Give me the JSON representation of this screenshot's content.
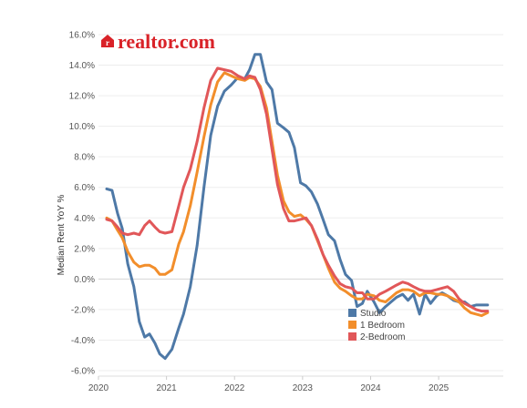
{
  "brand": {
    "logo_text": "realtor.com",
    "logo_mark": "r",
    "logo_color": "#d92228"
  },
  "chart_data": {
    "type": "line",
    "title": "",
    "xlabel": "",
    "ylabel": "Median Rent YoY %",
    "x_tick_labels": [
      "2020",
      "2021",
      "2022",
      "2023",
      "2024",
      "2025"
    ],
    "y_tick_labels": [
      "16.0%",
      "14.0%",
      "12.0%",
      "10.0%",
      "8.0%",
      "6.0%",
      "4.0%",
      "2.0%",
      "0.0%",
      "-2.0%",
      "-4.0%",
      "-6.0%"
    ],
    "xlim": [
      2020.0,
      2025.95
    ],
    "ylim": [
      -6.0,
      16.0
    ],
    "grid": "horizontal",
    "legend_position": "bottom-right",
    "series": [
      {
        "name": "Studio",
        "color": "#4e79a7",
        "points": [
          [
            2020.12,
            5.9
          ],
          [
            2020.2,
            5.8
          ],
          [
            2020.28,
            4.3
          ],
          [
            2020.35,
            3.3
          ],
          [
            2020.43,
            1.0
          ],
          [
            2020.52,
            -0.5
          ],
          [
            2020.6,
            -2.8
          ],
          [
            2020.68,
            -3.8
          ],
          [
            2020.75,
            -3.6
          ],
          [
            2020.83,
            -4.2
          ],
          [
            2020.9,
            -4.9
          ],
          [
            2020.98,
            -5.2
          ],
          [
            2021.08,
            -4.6
          ],
          [
            2021.18,
            -3.2
          ],
          [
            2021.25,
            -2.3
          ],
          [
            2021.35,
            -0.5
          ],
          [
            2021.45,
            2.2
          ],
          [
            2021.55,
            6.0
          ],
          [
            2021.65,
            9.4
          ],
          [
            2021.75,
            11.3
          ],
          [
            2021.85,
            12.3
          ],
          [
            2021.95,
            12.7
          ],
          [
            2022.05,
            13.2
          ],
          [
            2022.15,
            13.1
          ],
          [
            2022.22,
            13.7
          ],
          [
            2022.3,
            14.7
          ],
          [
            2022.38,
            14.7
          ],
          [
            2022.47,
            12.9
          ],
          [
            2022.55,
            12.4
          ],
          [
            2022.63,
            10.2
          ],
          [
            2022.72,
            9.9
          ],
          [
            2022.8,
            9.6
          ],
          [
            2022.88,
            8.6
          ],
          [
            2022.97,
            6.3
          ],
          [
            2023.05,
            6.1
          ],
          [
            2023.13,
            5.7
          ],
          [
            2023.22,
            4.9
          ],
          [
            2023.3,
            3.9
          ],
          [
            2023.38,
            2.9
          ],
          [
            2023.47,
            2.5
          ],
          [
            2023.55,
            1.3
          ],
          [
            2023.63,
            0.3
          ],
          [
            2023.72,
            -0.1
          ],
          [
            2023.8,
            -1.8
          ],
          [
            2023.88,
            -1.6
          ],
          [
            2023.95,
            -0.8
          ],
          [
            2024.05,
            -1.5
          ],
          [
            2024.13,
            -2.2
          ],
          [
            2024.22,
            -1.8
          ],
          [
            2024.3,
            -1.5
          ],
          [
            2024.38,
            -1.2
          ],
          [
            2024.47,
            -1.0
          ],
          [
            2024.55,
            -1.4
          ],
          [
            2024.63,
            -1.0
          ],
          [
            2024.72,
            -2.3
          ],
          [
            2024.8,
            -1.0
          ],
          [
            2024.88,
            -1.6
          ],
          [
            2024.97,
            -1.1
          ],
          [
            2025.05,
            -0.9
          ],
          [
            2025.13,
            -1.1
          ],
          [
            2025.22,
            -1.4
          ],
          [
            2025.3,
            -1.5
          ],
          [
            2025.38,
            -1.5
          ],
          [
            2025.47,
            -1.8
          ],
          [
            2025.55,
            -1.7
          ],
          [
            2025.63,
            -1.7
          ],
          [
            2025.72,
            -1.7
          ]
        ]
      },
      {
        "name": "1 Bedroom",
        "color": "#f28e2b",
        "points": [
          [
            2020.12,
            4.0
          ],
          [
            2020.2,
            3.8
          ],
          [
            2020.28,
            3.2
          ],
          [
            2020.35,
            2.7
          ],
          [
            2020.43,
            1.8
          ],
          [
            2020.52,
            1.1
          ],
          [
            2020.6,
            0.8
          ],
          [
            2020.68,
            0.9
          ],
          [
            2020.75,
            0.9
          ],
          [
            2020.83,
            0.7
          ],
          [
            2020.9,
            0.3
          ],
          [
            2020.98,
            0.3
          ],
          [
            2021.08,
            0.6
          ],
          [
            2021.18,
            2.3
          ],
          [
            2021.25,
            3.1
          ],
          [
            2021.35,
            4.8
          ],
          [
            2021.45,
            7.0
          ],
          [
            2021.55,
            9.3
          ],
          [
            2021.65,
            11.4
          ],
          [
            2021.75,
            12.9
          ],
          [
            2021.85,
            13.5
          ],
          [
            2021.95,
            13.3
          ],
          [
            2022.05,
            13.1
          ],
          [
            2022.15,
            13.0
          ],
          [
            2022.22,
            13.2
          ],
          [
            2022.3,
            13.1
          ],
          [
            2022.38,
            12.6
          ],
          [
            2022.47,
            11.2
          ],
          [
            2022.55,
            9.0
          ],
          [
            2022.63,
            6.8
          ],
          [
            2022.72,
            5.1
          ],
          [
            2022.8,
            4.4
          ],
          [
            2022.88,
            4.1
          ],
          [
            2022.97,
            4.2
          ],
          [
            2023.05,
            3.9
          ],
          [
            2023.13,
            3.5
          ],
          [
            2023.22,
            2.5
          ],
          [
            2023.3,
            1.6
          ],
          [
            2023.38,
            0.7
          ],
          [
            2023.47,
            -0.2
          ],
          [
            2023.55,
            -0.6
          ],
          [
            2023.63,
            -0.8
          ],
          [
            2023.72,
            -1.1
          ],
          [
            2023.8,
            -1.3
          ],
          [
            2023.88,
            -1.3
          ],
          [
            2023.95,
            -1.0
          ],
          [
            2024.05,
            -1.1
          ],
          [
            2024.13,
            -1.4
          ],
          [
            2024.22,
            -1.5
          ],
          [
            2024.3,
            -1.2
          ],
          [
            2024.38,
            -0.9
          ],
          [
            2024.47,
            -0.7
          ],
          [
            2024.55,
            -0.7
          ],
          [
            2024.63,
            -0.8
          ],
          [
            2024.72,
            -1.1
          ],
          [
            2024.8,
            -0.9
          ],
          [
            2024.88,
            -0.9
          ],
          [
            2024.97,
            -1.0
          ],
          [
            2025.05,
            -1.0
          ],
          [
            2025.13,
            -1.1
          ],
          [
            2025.22,
            -1.3
          ],
          [
            2025.3,
            -1.5
          ],
          [
            2025.38,
            -1.9
          ],
          [
            2025.47,
            -2.2
          ],
          [
            2025.55,
            -2.3
          ],
          [
            2025.63,
            -2.4
          ],
          [
            2025.72,
            -2.2
          ]
        ]
      },
      {
        "name": "2-Bedroom",
        "color": "#e15759",
        "points": [
          [
            2020.12,
            3.9
          ],
          [
            2020.2,
            3.8
          ],
          [
            2020.28,
            3.4
          ],
          [
            2020.35,
            3.0
          ],
          [
            2020.43,
            2.9
          ],
          [
            2020.52,
            3.0
          ],
          [
            2020.6,
            2.9
          ],
          [
            2020.68,
            3.5
          ],
          [
            2020.75,
            3.8
          ],
          [
            2020.83,
            3.4
          ],
          [
            2020.9,
            3.1
          ],
          [
            2020.98,
            3.0
          ],
          [
            2021.08,
            3.1
          ],
          [
            2021.18,
            4.8
          ],
          [
            2021.25,
            6.0
          ],
          [
            2021.35,
            7.2
          ],
          [
            2021.45,
            9.0
          ],
          [
            2021.55,
            11.2
          ],
          [
            2021.65,
            13.0
          ],
          [
            2021.75,
            13.8
          ],
          [
            2021.85,
            13.7
          ],
          [
            2021.95,
            13.6
          ],
          [
            2022.05,
            13.3
          ],
          [
            2022.15,
            13.1
          ],
          [
            2022.22,
            13.3
          ],
          [
            2022.3,
            13.2
          ],
          [
            2022.38,
            12.4
          ],
          [
            2022.47,
            10.8
          ],
          [
            2022.55,
            8.5
          ],
          [
            2022.63,
            6.2
          ],
          [
            2022.72,
            4.6
          ],
          [
            2022.8,
            3.8
          ],
          [
            2022.88,
            3.8
          ],
          [
            2022.97,
            3.9
          ],
          [
            2023.05,
            4.0
          ],
          [
            2023.13,
            3.5
          ],
          [
            2023.22,
            2.6
          ],
          [
            2023.3,
            1.6
          ],
          [
            2023.38,
            0.9
          ],
          [
            2023.47,
            0.2
          ],
          [
            2023.55,
            -0.3
          ],
          [
            2023.63,
            -0.5
          ],
          [
            2023.72,
            -0.6
          ],
          [
            2023.8,
            -0.9
          ],
          [
            2023.88,
            -0.9
          ],
          [
            2023.95,
            -1.3
          ],
          [
            2024.05,
            -1.3
          ],
          [
            2024.13,
            -1.0
          ],
          [
            2024.22,
            -0.8
          ],
          [
            2024.3,
            -0.6
          ],
          [
            2024.38,
            -0.4
          ],
          [
            2024.47,
            -0.2
          ],
          [
            2024.55,
            -0.3
          ],
          [
            2024.63,
            -0.5
          ],
          [
            2024.72,
            -0.7
          ],
          [
            2024.8,
            -0.8
          ],
          [
            2024.88,
            -0.8
          ],
          [
            2024.97,
            -0.7
          ],
          [
            2025.05,
            -0.6
          ],
          [
            2025.13,
            -0.5
          ],
          [
            2025.22,
            -0.8
          ],
          [
            2025.3,
            -1.3
          ],
          [
            2025.38,
            -1.6
          ],
          [
            2025.47,
            -1.8
          ],
          [
            2025.55,
            -2.0
          ],
          [
            2025.63,
            -2.1
          ],
          [
            2025.72,
            -2.1
          ]
        ]
      }
    ]
  }
}
